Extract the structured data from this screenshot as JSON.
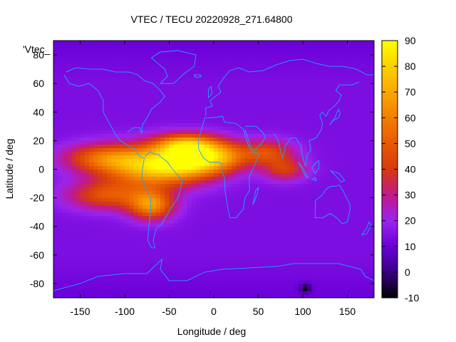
{
  "chart_data": {
    "type": "heatmap",
    "title": "VTEC / TECU 20220928_271.64800",
    "xlabel": "Longitude / deg",
    "ylabel": "Latitude / deg",
    "key_label": "'Vtec_",
    "xlim": [
      -180,
      180
    ],
    "ylim": [
      -90,
      90
    ],
    "x_ticks": [
      -150,
      -100,
      -50,
      0,
      50,
      100,
      150
    ],
    "y_ticks": [
      -80,
      -60,
      -40,
      -20,
      0,
      20,
      40,
      60,
      80
    ],
    "colorbar": {
      "range": [
        -10,
        90
      ],
      "ticks": [
        -10,
        0,
        10,
        20,
        30,
        40,
        50,
        60,
        70,
        80,
        90
      ],
      "palette_stops": [
        {
          "v": -10,
          "c": "#000000"
        },
        {
          "v": 0,
          "c": "#3a0080"
        },
        {
          "v": 10,
          "c": "#6a00d8"
        },
        {
          "v": 20,
          "c": "#9a24ee"
        },
        {
          "v": 30,
          "c": "#c2188a"
        },
        {
          "v": 40,
          "c": "#d63a10"
        },
        {
          "v": 50,
          "c": "#e85a00"
        },
        {
          "v": 60,
          "c": "#f27f00"
        },
        {
          "v": 70,
          "c": "#f8a800"
        },
        {
          "v": 80,
          "c": "#fcd000"
        },
        {
          "v": 90,
          "c": "#ffff00"
        }
      ]
    },
    "background_tecu": 14,
    "features": [
      {
        "name": "equatorial-anomaly-americas",
        "lon": -65,
        "lat": 2,
        "peak_tecu": 82,
        "lon_width": 55,
        "lat_width": 14
      },
      {
        "name": "atlantic-crest-north",
        "lon": -30,
        "lat": 17,
        "peak_tecu": 76,
        "lon_width": 35,
        "lat_width": 8
      },
      {
        "name": "atlantic-trough",
        "lon": -20,
        "lat": 5,
        "peak_tecu": 58,
        "lon_width": 40,
        "lat_width": 10
      },
      {
        "name": "pacific-band-north",
        "lon": -125,
        "lat": 8,
        "peak_tecu": 52,
        "lon_width": 45,
        "lat_width": 10
      },
      {
        "name": "pacific-band-south",
        "lon": -120,
        "lat": -18,
        "peak_tecu": 50,
        "lon_width": 45,
        "lat_width": 10
      },
      {
        "name": "south-america-south",
        "lon": -70,
        "lat": -25,
        "peak_tecu": 66,
        "lon_width": 25,
        "lat_width": 10
      },
      {
        "name": "africa-north",
        "lon": 10,
        "lat": 10,
        "peak_tecu": 48,
        "lon_width": 30,
        "lat_width": 10
      },
      {
        "name": "arabia-india",
        "lon": 60,
        "lat": 12,
        "peak_tecu": 48,
        "lon_width": 30,
        "lat_width": 9
      },
      {
        "name": "indian-ocean",
        "lon": 80,
        "lat": 0,
        "peak_tecu": 42,
        "lon_width": 25,
        "lat_width": 8
      },
      {
        "name": "antarctic-low",
        "lon": 103,
        "lat": -83,
        "peak_tecu": -6,
        "lon_width": 6,
        "lat_width": 3
      }
    ]
  }
}
